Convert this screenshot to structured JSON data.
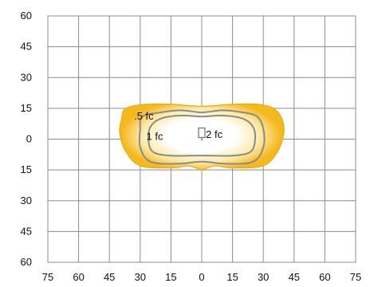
{
  "chart_data": {
    "type": "isofootcandle",
    "title": "",
    "xlabel": "",
    "ylabel": "",
    "xlim": [
      -75,
      75
    ],
    "ylim": [
      -60,
      60
    ],
    "x_ticks": [
      -75,
      -60,
      -45,
      -30,
      -15,
      0,
      15,
      30,
      45,
      60,
      75
    ],
    "x_tick_labels": [
      "75",
      "60",
      "45",
      "30",
      "15",
      "0",
      "15",
      "30",
      "45",
      "60",
      "75"
    ],
    "y_ticks": [
      60,
      45,
      30,
      15,
      0,
      -15,
      -30,
      -45,
      -60
    ],
    "y_tick_labels": [
      "60",
      "45",
      "30",
      "15",
      "0",
      "15",
      "30",
      "45",
      "60"
    ],
    "grid": true,
    "colors": {
      "outer": "#f5b81d",
      "inner": "#ffffff",
      "contour": "#8a8a8a",
      "grid": "#8c8c8c"
    },
    "fixture_position": [
      0,
      0
    ],
    "contours": [
      {
        "label": ".5 fc",
        "label_at": [
          -33,
          11.5
        ],
        "points": [
          [
            -37,
            15
          ],
          [
            -27,
            17
          ],
          [
            -15,
            17
          ],
          [
            0,
            16
          ],
          [
            15,
            17
          ],
          [
            27,
            17
          ],
          [
            35,
            15
          ],
          [
            39,
            10
          ],
          [
            40,
            3
          ],
          [
            37,
            -6
          ],
          [
            30,
            -13
          ],
          [
            15,
            -14
          ],
          [
            7,
            -13
          ],
          [
            3,
            -14
          ],
          [
            0,
            -15
          ],
          [
            -3,
            -14
          ],
          [
            -7,
            -13
          ],
          [
            -15,
            -14
          ],
          [
            -30,
            -13
          ],
          [
            -37,
            -6
          ],
          [
            -40,
            3
          ],
          [
            -39,
            10
          ]
        ]
      },
      {
        "label": "1 fc",
        "label_at": [
          -27,
          1.5
        ],
        "points": [
          [
            -29,
            11
          ],
          [
            -20,
            13
          ],
          [
            -10,
            14
          ],
          [
            0,
            13
          ],
          [
            10,
            14
          ],
          [
            20,
            13
          ],
          [
            27,
            11
          ],
          [
            30,
            5
          ],
          [
            30,
            -4
          ],
          [
            25,
            -11
          ],
          [
            12,
            -12
          ],
          [
            0,
            -11
          ],
          [
            -12,
            -12
          ],
          [
            -25,
            -11
          ],
          [
            -30,
            -4
          ],
          [
            -30,
            5
          ]
        ]
      },
      {
        "label": "2 fc",
        "label_at": [
          2,
          2.5
        ],
        "points": [
          [
            -20,
            10
          ],
          [
            -10,
            11.5
          ],
          [
            0,
            11
          ],
          [
            10,
            11.5
          ],
          [
            20,
            10
          ],
          [
            25,
            6
          ],
          [
            26,
            0
          ],
          [
            24,
            -6
          ],
          [
            16,
            -8
          ],
          [
            0,
            -8
          ],
          [
            -16,
            -8
          ],
          [
            -24,
            -6
          ],
          [
            -26,
            0
          ],
          [
            -25,
            6
          ]
        ]
      }
    ]
  }
}
